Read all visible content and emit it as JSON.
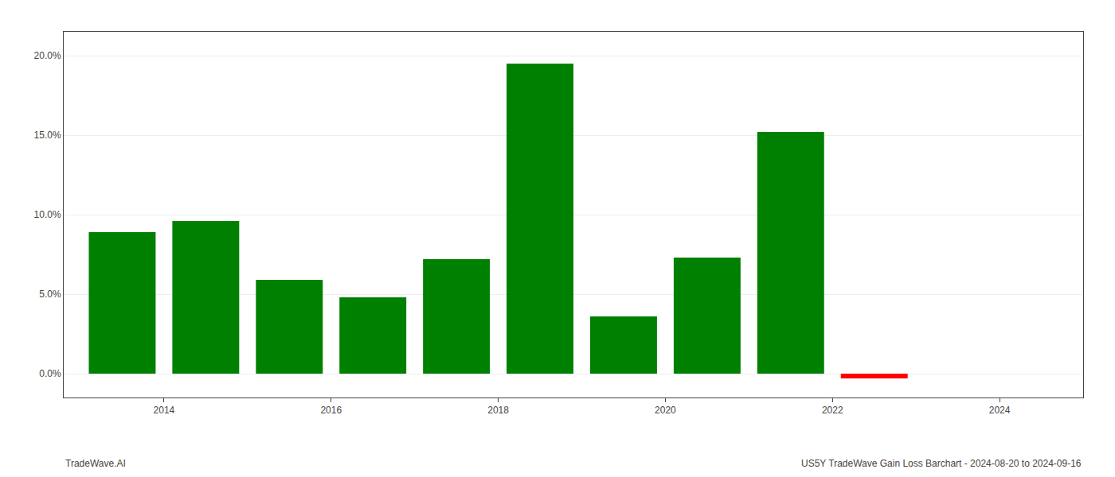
{
  "chart_data": {
    "type": "bar",
    "x": [
      2013.5,
      2014.5,
      2015.5,
      2016.5,
      2017.5,
      2018.5,
      2019.5,
      2020.5,
      2021.5,
      2022.5
    ],
    "values": [
      0.089,
      0.096,
      0.059,
      0.048,
      0.072,
      0.195,
      0.036,
      0.073,
      0.152,
      -0.003
    ],
    "colors": [
      "#008000",
      "#008000",
      "#008000",
      "#008000",
      "#008000",
      "#008000",
      "#008000",
      "#008000",
      "#008000",
      "#ff0000"
    ],
    "xlim": [
      2012.8,
      2025.0
    ],
    "xticks": [
      2014,
      2016,
      2018,
      2020,
      2022,
      2024
    ],
    "ylim": [
      -0.015,
      0.215
    ],
    "yticks": [
      {
        "value": 0.0,
        "label": "0.0%"
      },
      {
        "value": 0.05,
        "label": "5.0%"
      },
      {
        "value": 0.1,
        "label": "10.0%"
      },
      {
        "value": 0.15,
        "label": "15.0%"
      },
      {
        "value": 0.2,
        "label": "20.0%"
      }
    ],
    "grid": true,
    "annotations": [
      "TradeWave.AI",
      "US5Y TradeWave Gain Loss Barchart - 2024-08-20 to 2024-09-16"
    ]
  }
}
